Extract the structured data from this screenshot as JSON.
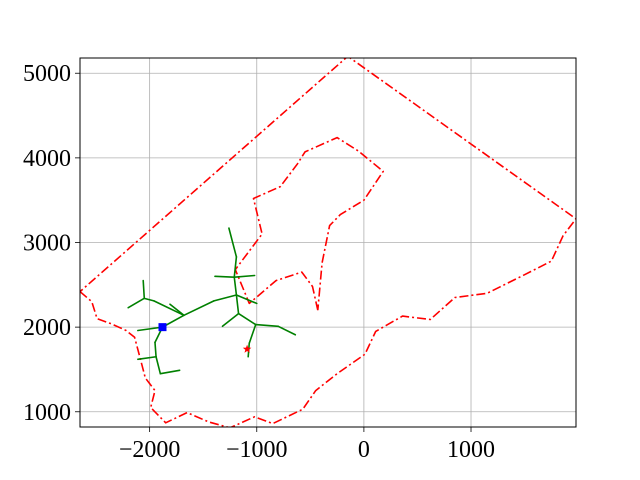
{
  "chart_data": {
    "type": "line",
    "title": "",
    "xlabel": "",
    "ylabel": "",
    "xlim": [
      -2650,
      1980
    ],
    "ylim": [
      820,
      5180
    ],
    "grid": true,
    "x_ticks": [
      -2000,
      -1000,
      0,
      1000
    ],
    "x_tick_labels": [
      "−2000",
      "−1000",
      "0",
      "1000"
    ],
    "y_ticks": [
      1000,
      2000,
      3000,
      4000,
      5000
    ],
    "y_tick_labels": [
      "1000",
      "2000",
      "3000",
      "4000",
      "5000"
    ],
    "colors": {
      "boundary": "#ff0000",
      "tree": "#008000",
      "start": "#0000ff",
      "goal": "#ff0000",
      "grid": "#b0b0b0"
    },
    "boundary_outer": {
      "style": "dash-dot",
      "points": [
        [
          -2650,
          2420
        ],
        [
          -2540,
          2300
        ],
        [
          -2490,
          2100
        ],
        [
          -2360,
          2040
        ],
        [
          -2220,
          1960
        ],
        [
          -2140,
          1880
        ],
        [
          -2090,
          1640
        ],
        [
          -2040,
          1400
        ],
        [
          -1950,
          1250
        ],
        [
          -1990,
          1050
        ],
        [
          -1850,
          870
        ],
        [
          -1650,
          990
        ],
        [
          -1450,
          880
        ],
        [
          -1250,
          810
        ],
        [
          -1020,
          940
        ],
        [
          -850,
          860
        ],
        [
          -570,
          1030
        ],
        [
          -450,
          1250
        ],
        [
          -250,
          1450
        ],
        [
          10,
          1680
        ],
        [
          110,
          1950
        ],
        [
          360,
          2130
        ],
        [
          620,
          2090
        ],
        [
          850,
          2350
        ],
        [
          1150,
          2400
        ],
        [
          1500,
          2620
        ],
        [
          1750,
          2780
        ],
        [
          1860,
          3080
        ],
        [
          1980,
          3280
        ],
        [
          -150,
          5200
        ],
        [
          -2650,
          2420
        ]
      ]
    },
    "boundary_inner": {
      "style": "dash-dot",
      "points": [
        [
          -430,
          2200
        ],
        [
          -480,
          2480
        ],
        [
          -580,
          2650
        ],
        [
          -820,
          2550
        ],
        [
          -1070,
          2280
        ],
        [
          -1200,
          2680
        ],
        [
          -950,
          3100
        ],
        [
          -1030,
          3520
        ],
        [
          -780,
          3660
        ],
        [
          -620,
          3930
        ],
        [
          -550,
          4070
        ],
        [
          -250,
          4240
        ],
        [
          -50,
          4080
        ],
        [
          180,
          3840
        ],
        [
          0,
          3500
        ],
        [
          -220,
          3330
        ],
        [
          -320,
          3200
        ],
        [
          -390,
          2760
        ],
        [
          -430,
          2200
        ]
      ]
    },
    "tree_edges": [
      [
        [
          -1880,
          2000
        ],
        [
          -1680,
          2140
        ]
      ],
      [
        [
          -1680,
          2140
        ],
        [
          -1960,
          2310
        ]
      ],
      [
        [
          -1960,
          2310
        ],
        [
          -2050,
          2340
        ]
      ],
      [
        [
          -2050,
          2340
        ],
        [
          -2200,
          2230
        ]
      ],
      [
        [
          -2050,
          2340
        ],
        [
          -2060,
          2550
        ]
      ],
      [
        [
          -1680,
          2140
        ],
        [
          -1810,
          2270
        ]
      ],
      [
        [
          -1880,
          2000
        ],
        [
          -2110,
          1960
        ]
      ],
      [
        [
          -1880,
          2000
        ],
        [
          -1950,
          1820
        ]
      ],
      [
        [
          -1950,
          1820
        ],
        [
          -1940,
          1650
        ]
      ],
      [
        [
          -1940,
          1650
        ],
        [
          -2110,
          1620
        ]
      ],
      [
        [
          -1940,
          1650
        ],
        [
          -1900,
          1450
        ]
      ],
      [
        [
          -1900,
          1450
        ],
        [
          -1720,
          1490
        ]
      ],
      [
        [
          -1680,
          2140
        ],
        [
          -1400,
          2310
        ]
      ],
      [
        [
          -1400,
          2310
        ],
        [
          -1190,
          2380
        ]
      ],
      [
        [
          -1190,
          2380
        ],
        [
          -1210,
          2590
        ]
      ],
      [
        [
          -1210,
          2590
        ],
        [
          -1390,
          2600
        ]
      ],
      [
        [
          -1210,
          2590
        ],
        [
          -1020,
          2610
        ]
      ],
      [
        [
          -1210,
          2590
        ],
        [
          -1190,
          2830
        ]
      ],
      [
        [
          -1190,
          2830
        ],
        [
          -1260,
          3170
        ]
      ],
      [
        [
          -1190,
          2380
        ],
        [
          -1000,
          2280
        ]
      ],
      [
        [
          -1190,
          2380
        ],
        [
          -1170,
          2160
        ]
      ],
      [
        [
          -1170,
          2160
        ],
        [
          -1320,
          2010
        ]
      ],
      [
        [
          -1170,
          2160
        ],
        [
          -1010,
          2030
        ]
      ],
      [
        [
          -1010,
          2030
        ],
        [
          -800,
          2010
        ]
      ],
      [
        [
          -800,
          2010
        ],
        [
          -640,
          1910
        ]
      ],
      [
        [
          -1010,
          2030
        ],
        [
          -1070,
          1810
        ]
      ],
      [
        [
          -1070,
          1810
        ],
        [
          -1080,
          1650
        ]
      ]
    ],
    "start": {
      "marker": "square",
      "x": -1880,
      "y": 2000
    },
    "goal": {
      "marker": "star",
      "x": -1090,
      "y": 1740
    }
  }
}
